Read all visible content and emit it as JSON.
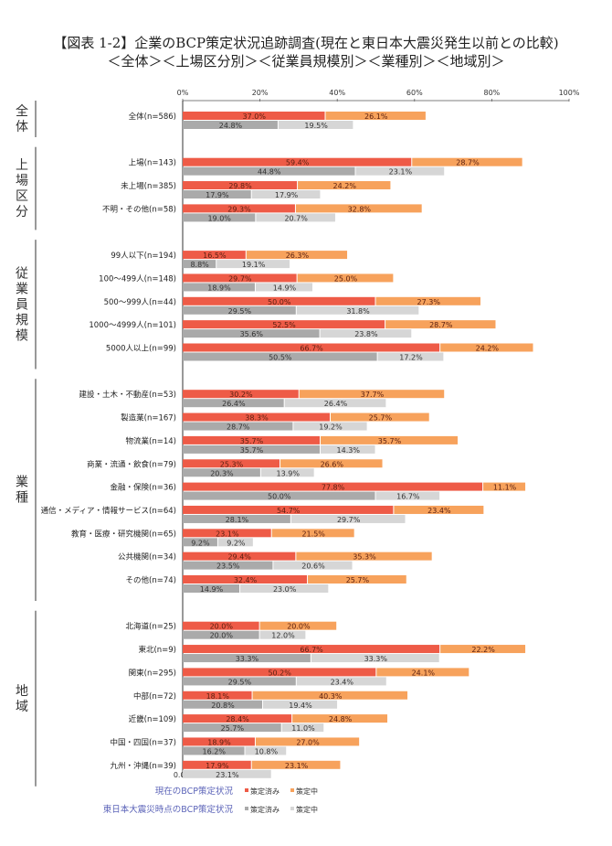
{
  "chart_data": {
    "type": "bar",
    "orientation": "horizontal-stacked",
    "title": "【図表 1-2】企業のBCP策定状況追跡調査(現在と東日本大震災発生以前との比較)",
    "subtitle": "＜全体＞＜上場区分別＞＜従業員規模別＞＜業種別＞＜地域別＞",
    "xlim": [
      0,
      100
    ],
    "xticks": [
      "0%",
      "20%",
      "40%",
      "60%",
      "80%",
      "100%"
    ],
    "colors": {
      "current_done": "#ee5b47",
      "current_progress": "#f7a25c",
      "prior_done": "#aaaaaa",
      "prior_progress": "#d6d6d6"
    },
    "legend": {
      "current_label": "現在のBCP策定状況",
      "prior_label": "東日本大震災時点のBCP策定状況",
      "done": "策定済み",
      "progress": "策定中"
    },
    "groups": [
      {
        "name": "全体",
        "rows": [
          {
            "label": "全体(n=586)",
            "current": [
              37.0,
              26.1
            ],
            "prior": [
              24.8,
              19.5
            ]
          }
        ]
      },
      {
        "name": "上場区分",
        "rows": [
          {
            "label": "上場(n=143)",
            "current": [
              59.4,
              28.7
            ],
            "prior": [
              44.8,
              23.1
            ]
          },
          {
            "label": "未上場(n=385)",
            "current": [
              29.8,
              24.2
            ],
            "prior": [
              17.9,
              17.9
            ]
          },
          {
            "label": "不明・その他(n=58)",
            "current": [
              29.3,
              32.8
            ],
            "prior": [
              19.0,
              20.7
            ]
          }
        ]
      },
      {
        "name": "従業員規模",
        "rows": [
          {
            "label": "99人以下(n=194)",
            "current": [
              16.5,
              26.3
            ],
            "prior": [
              8.8,
              19.1
            ]
          },
          {
            "label": "100～499人(n=148)",
            "current": [
              29.7,
              25.0
            ],
            "prior": [
              18.9,
              14.9
            ]
          },
          {
            "label": "500～999人(n=44)",
            "current": [
              50.0,
              27.3
            ],
            "prior": [
              29.5,
              31.8
            ]
          },
          {
            "label": "1000～4999人(n=101)",
            "current": [
              52.5,
              28.7
            ],
            "prior": [
              35.6,
              23.8
            ]
          },
          {
            "label": "5000人以上(n=99)",
            "current": [
              66.7,
              24.2
            ],
            "prior": [
              50.5,
              17.2
            ]
          }
        ]
      },
      {
        "name": "業種",
        "rows": [
          {
            "label": "建設・土木・不動産(n=53)",
            "current": [
              30.2,
              37.7
            ],
            "prior": [
              26.4,
              26.4
            ]
          },
          {
            "label": "製造業(n=167)",
            "current": [
              38.3,
              25.7
            ],
            "prior": [
              28.7,
              19.2
            ]
          },
          {
            "label": "物流業(n=14)",
            "current": [
              35.7,
              35.7
            ],
            "prior": [
              35.7,
              14.3
            ]
          },
          {
            "label": "商業・流通・飲食(n=79)",
            "current": [
              25.3,
              26.6
            ],
            "prior": [
              20.3,
              13.9
            ]
          },
          {
            "label": "金融・保険(n=36)",
            "current": [
              77.8,
              11.1
            ],
            "prior": [
              50.0,
              16.7
            ]
          },
          {
            "label": "通信・メディア・情報サービス(n=64)",
            "current": [
              54.7,
              23.4
            ],
            "prior": [
              28.1,
              29.7
            ]
          },
          {
            "label": "教育・医療・研究機関(n=65)",
            "current": [
              23.1,
              21.5
            ],
            "prior": [
              9.2,
              9.2
            ]
          },
          {
            "label": "公共機関(n=34)",
            "current": [
              29.4,
              35.3
            ],
            "prior": [
              23.5,
              20.6
            ]
          },
          {
            "label": "その他(n=74)",
            "current": [
              32.4,
              25.7
            ],
            "prior": [
              14.9,
              23.0
            ]
          }
        ]
      },
      {
        "name": "地域",
        "rows": [
          {
            "label": "北海道(n=25)",
            "current": [
              20.0,
              20.0
            ],
            "prior": [
              20.0,
              12.0
            ]
          },
          {
            "label": "東北(n=9)",
            "current": [
              66.7,
              22.2
            ],
            "prior": [
              33.3,
              33.3
            ]
          },
          {
            "label": "関東(n=295)",
            "current": [
              50.2,
              24.1
            ],
            "prior": [
              29.5,
              23.4
            ]
          },
          {
            "label": "中部(n=72)",
            "current": [
              18.1,
              40.3
            ],
            "prior": [
              20.8,
              19.4
            ]
          },
          {
            "label": "近畿(n=109)",
            "current": [
              28.4,
              24.8
            ],
            "prior": [
              25.7,
              11.0
            ]
          },
          {
            "label": "中国・四国(n=37)",
            "current": [
              18.9,
              27.0
            ],
            "prior": [
              16.2,
              10.8
            ]
          },
          {
            "label": "九州・沖縄(n=39)",
            "current": [
              17.9,
              23.1
            ],
            "prior": [
              0.0,
              23.1
            ]
          }
        ]
      }
    ]
  }
}
